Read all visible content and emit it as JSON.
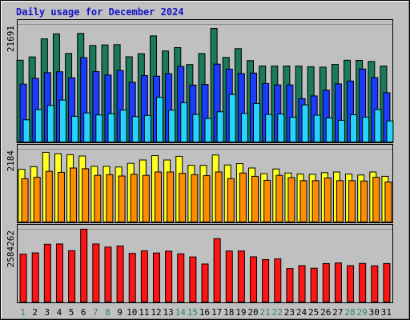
{
  "chart_data": {
    "type": "bar",
    "title": "Daily usage for December 2024",
    "categories": [
      "1",
      "2",
      "3",
      "4",
      "5",
      "6",
      "7",
      "8",
      "9",
      "10",
      "11",
      "12",
      "13",
      "14",
      "15",
      "16",
      "17",
      "18",
      "19",
      "20",
      "21",
      "22",
      "23",
      "24",
      "25",
      "26",
      "27",
      "28",
      "29",
      "30",
      "31"
    ],
    "weekend_days": [
      "1",
      "7",
      "8",
      "14",
      "15",
      "21",
      "22",
      "28",
      "29"
    ],
    "panels": [
      {
        "name": "top",
        "ymax": 21691,
        "ymax_label": "21691",
        "series": [
          {
            "color": "#1a7a5a",
            "values": [
              15080,
              15690,
              19030,
              19950,
              16330,
              20040,
              17800,
              17900,
              17950,
              15720,
              16290,
              19570,
              16790,
              17410,
              14280,
              16320,
              20950,
              15600,
              17220,
              15010,
              14020,
              14000,
              14020,
              14010,
              13880,
              13810,
              14300,
              15080,
              15050,
              14850,
              14020
            ]
          },
          {
            "color": "#1a3cff",
            "values": [
              10680,
              11750,
              12790,
              12960,
              11840,
              15560,
              12980,
              12350,
              13190,
              11030,
              12260,
              12140,
              12610,
              13950,
              10510,
              10610,
              14360,
              13450,
              12640,
              12720,
              10800,
              10530,
              10530,
              8000,
              8500,
              9570,
              10710,
              11250,
              13460,
              11880,
              9080
            ]
          },
          {
            "color": "#26d4ff",
            "values": [
              4090,
              5990,
              6750,
              7730,
              4740,
              5350,
              4990,
              5230,
              5890,
              4690,
              4890,
              8240,
              5870,
              7250,
              5090,
              4350,
              5570,
              8760,
              5290,
              7100,
              5090,
              5180,
              4570,
              6840,
              4950,
              4430,
              4000,
              5020,
              4590,
              5990,
              3890
            ]
          }
        ]
      },
      {
        "name": "middle",
        "ymax": 2184,
        "ymax_label": "2184",
        "series": [
          {
            "color": "#ffff20",
            "values": [
              1580,
              1660,
              2090,
              2050,
              2020,
              1980,
              1670,
              1670,
              1650,
              1760,
              1860,
              1990,
              1860,
              1970,
              1700,
              1700,
              2010,
              1710,
              1750,
              1620,
              1450,
              1590,
              1470,
              1440,
              1430,
              1480,
              1500,
              1440,
              1410,
              1500,
              1370
            ]
          },
          {
            "color": "#ff8c00",
            "values": [
              1300,
              1340,
              1520,
              1490,
              1620,
              1600,
              1400,
              1420,
              1380,
              1430,
              1400,
              1500,
              1500,
              1460,
              1420,
              1390,
              1500,
              1300,
              1470,
              1370,
              1250,
              1400,
              1330,
              1240,
              1240,
              1320,
              1240,
              1240,
              1230,
              1340,
              1200
            ]
          }
        ]
      },
      {
        "name": "bottom",
        "ymax": 2584262,
        "ymax_label": "2584262",
        "series": [
          {
            "color": "#ff1414",
            "values": [
              1700000,
              1745000,
              2050000,
              2060000,
              1820000,
              2584262,
              2060000,
              1950000,
              1990000,
              1725000,
              1815000,
              1740000,
              1805000,
              1710000,
              1600000,
              1350000,
              2250000,
              1810000,
              1810000,
              1605000,
              1505000,
              1530000,
              1190000,
              1290000,
              1200000,
              1365000,
              1385000,
              1290000,
              1370000,
              1285000,
              1365000
            ]
          }
        ]
      }
    ],
    "colors": {
      "background": "#c0c0c0",
      "title": "#1414c8",
      "axis_label": "#000000",
      "weekday_label": "#000000",
      "weekend_label": "#2c8a5a",
      "grid": "#8c8c8c",
      "frame": "#000000"
    }
  }
}
